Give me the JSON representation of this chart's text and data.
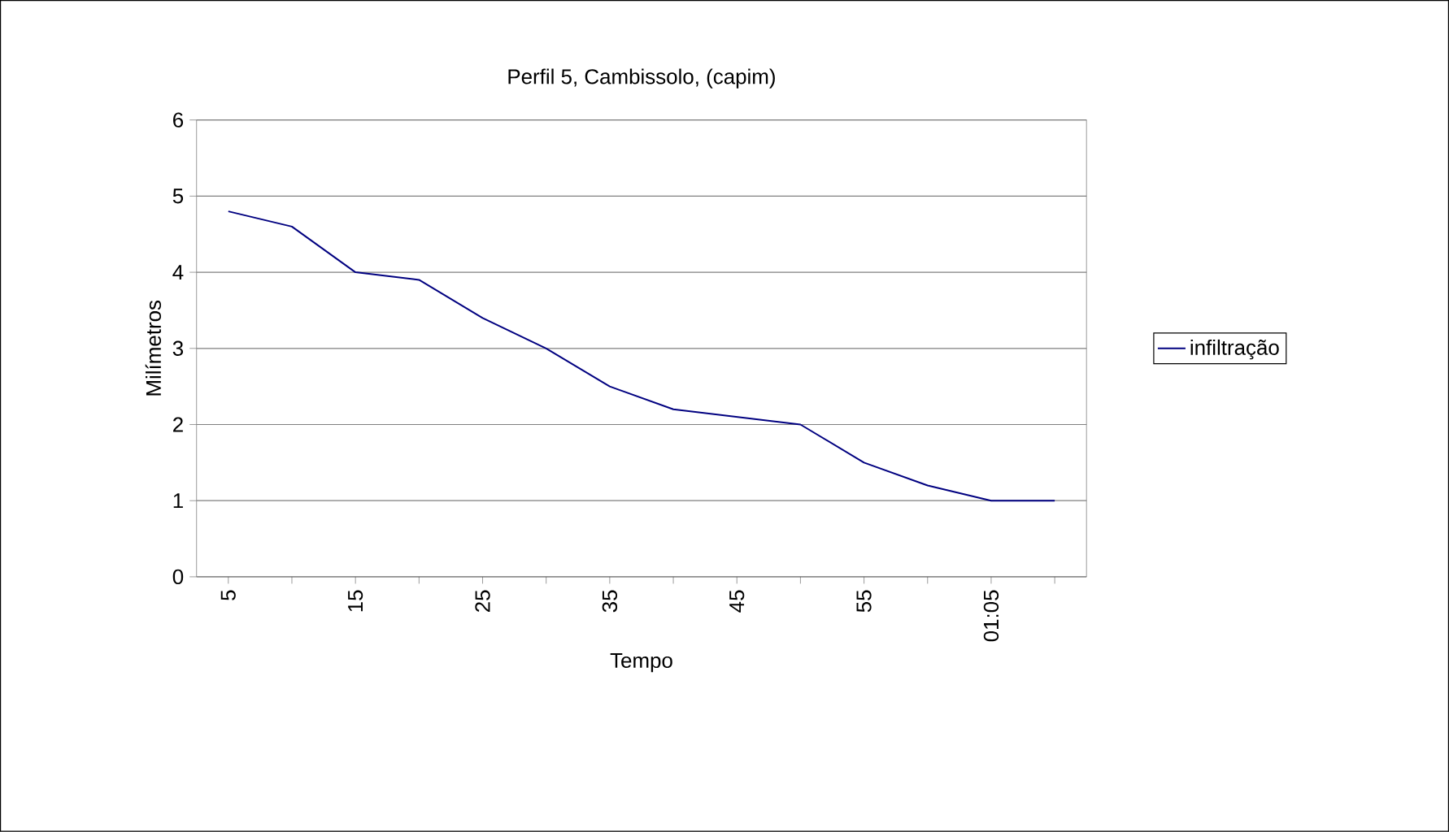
{
  "chart_data": {
    "type": "line",
    "title": "Perfil 5,  Cambissolo,  (capim)",
    "xlabel": "Tempo",
    "ylabel": "Milímetros",
    "categories": [
      "5",
      null,
      "15",
      null,
      "25",
      null,
      "35",
      null,
      "45",
      null,
      "55",
      null,
      "01:05",
      null
    ],
    "series": [
      {
        "name": "infiltração",
        "color": "#000080",
        "values": [
          4.8,
          4.6,
          4.0,
          3.9,
          3.4,
          3.0,
          2.5,
          2.2,
          2.1,
          2.0,
          1.5,
          1.2,
          1.0,
          1.0
        ]
      }
    ],
    "ylim": [
      0,
      6
    ],
    "yticks": [
      0,
      1,
      2,
      3,
      4,
      5,
      6
    ],
    "grid": "y",
    "legend": "right",
    "marker": "none",
    "line_style": "solid"
  }
}
